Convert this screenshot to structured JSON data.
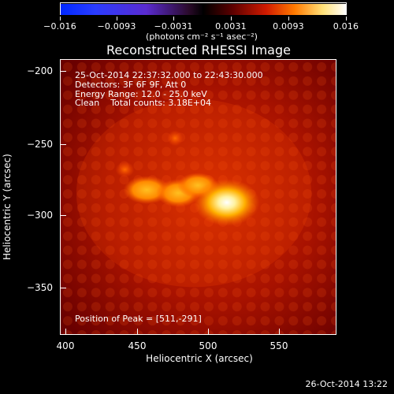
{
  "colorbar": {
    "ticks": [
      "−0.016",
      "−0.0093",
      "−0.0031",
      "0.0031",
      "0.0093",
      "0.016"
    ],
    "units": "(photons cm⁻² s⁻¹ asec⁻²)"
  },
  "title": "Reconstructed RHESSI Image",
  "annotations": {
    "time_range": "25-Oct-2014 22:37:32.000 to 22:43:30.000",
    "detectors": "Detectors: 3F 6F 9F, Att 0",
    "energy": "Energy Range: 12.0 - 25.0 keV",
    "algorithm": "Clean    Total counts: 3.18E+04",
    "peak": "Position of Peak = [511,-291]"
  },
  "axes": {
    "ylabel": "Heliocentric Y (arcsec)",
    "xlabel": "Heliocentric X (arcsec)",
    "yticks": [
      "−200",
      "−250",
      "−300",
      "−350"
    ],
    "xticks": [
      "400",
      "450",
      "500",
      "550"
    ]
  },
  "timestamp": "26-Oct-2014 13:22"
}
